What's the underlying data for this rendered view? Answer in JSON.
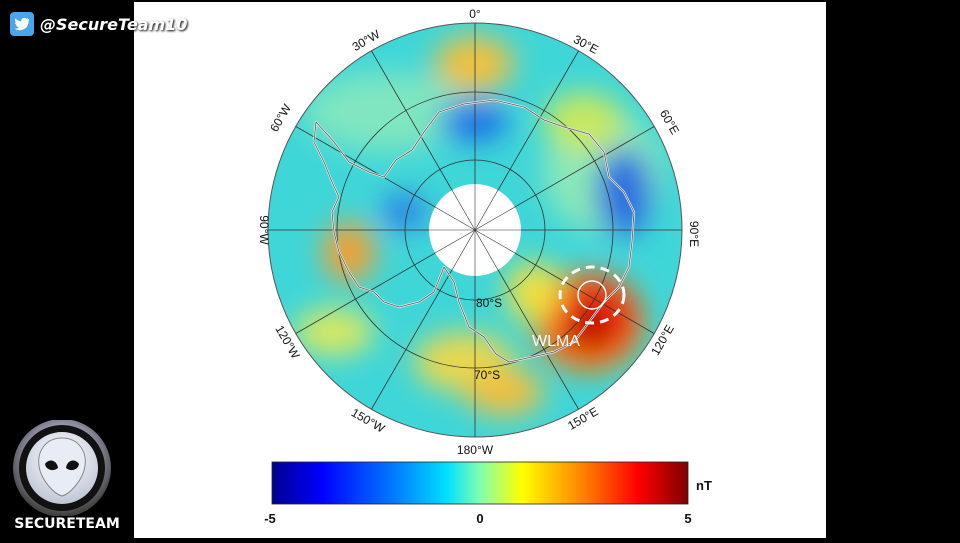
{
  "overlay": {
    "handle": "@SecureTeam10",
    "brand_name": "SECURETEAM"
  },
  "map": {
    "longitude_labels": [
      "0°",
      "30°E",
      "60°E",
      "90°E",
      "120°E",
      "150°E",
      "180°W",
      "150°W",
      "120°W",
      "90°W",
      "60°W",
      "30°W"
    ],
    "latitude_labels": [
      "80°S",
      "70°S"
    ],
    "annotation": "WLMA"
  },
  "colorbar": {
    "unit": "nT",
    "tick_labels": [
      "-5",
      "0",
      "5"
    ],
    "min": -5,
    "max": 5,
    "colors": [
      "#00008f",
      "#0000ff",
      "#0080ff",
      "#00e0ff",
      "#80ffb0",
      "#ffff00",
      "#ff8000",
      "#ff0000",
      "#800000"
    ]
  }
}
